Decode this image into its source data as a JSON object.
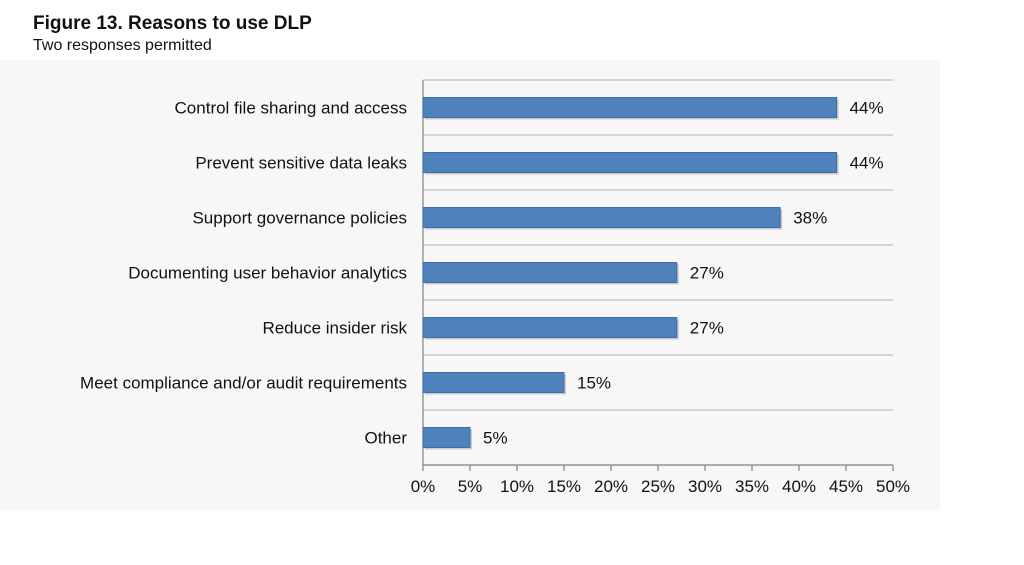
{
  "figure": {
    "title": "Figure 13. Reasons to use DLP",
    "subtitle": "Two responses permitted"
  },
  "colors": {
    "bar": "#4f81bd",
    "bar_edge": "#3f6ea7",
    "grid": "#bfbfbf",
    "axis": "#808080"
  },
  "chart_data": {
    "type": "bar",
    "orientation": "horizontal",
    "title": "Figure 13. Reasons to use DLP",
    "subtitle": "Two responses permitted",
    "categories": [
      "Control file sharing and access",
      "Prevent sensitive data leaks",
      "Support governance policies",
      "Documenting user behavior analytics",
      "Reduce insider risk",
      "Meet compliance and/or audit requirements",
      "Other"
    ],
    "values": [
      44,
      44,
      38,
      27,
      27,
      15,
      5
    ],
    "value_labels": [
      "44%",
      "44%",
      "38%",
      "27%",
      "27%",
      "15%",
      "5%"
    ],
    "xlim": [
      0,
      50
    ],
    "xticks": [
      0,
      5,
      10,
      15,
      20,
      25,
      30,
      35,
      40,
      45,
      50
    ],
    "xtick_labels": [
      "0%",
      "5%",
      "10%",
      "15%",
      "20%",
      "25%",
      "30%",
      "35%",
      "40%",
      "45%",
      "50%"
    ],
    "xlabel": "",
    "ylabel": "",
    "grid": true
  }
}
